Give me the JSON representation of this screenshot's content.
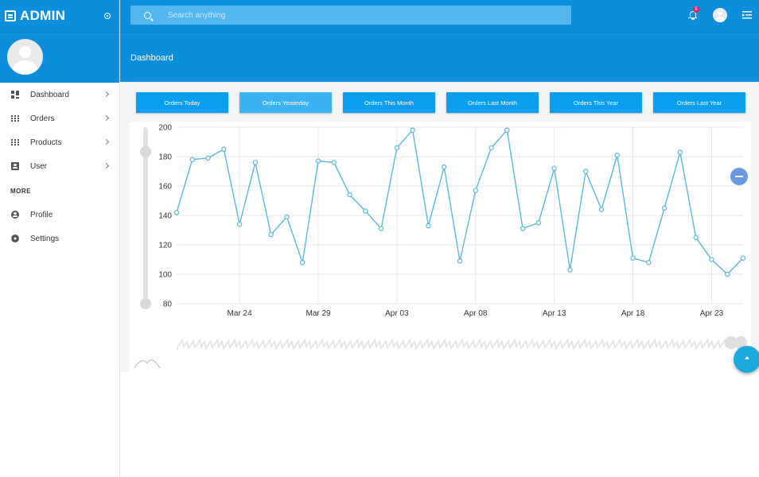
{
  "brand": {
    "title": "ADMIN"
  },
  "search": {
    "placeholder": "Search anything"
  },
  "notifications": {
    "count": "5"
  },
  "sidebar": {
    "items": [
      {
        "label": "Dashboard",
        "icon": "dashboard-icon"
      },
      {
        "label": "Orders",
        "icon": "grid-icon"
      },
      {
        "label": "Products",
        "icon": "grid-icon"
      },
      {
        "label": "User",
        "icon": "user-card-icon"
      }
    ],
    "section_title": "MORE",
    "more_items": [
      {
        "label": "Profile",
        "icon": "profile-icon"
      },
      {
        "label": "Settings",
        "icon": "gear-icon"
      }
    ]
  },
  "header": {
    "title": "Dashboard"
  },
  "order_buttons": [
    {
      "label": "Orders Today",
      "active": false
    },
    {
      "label": "Orders Yesterday",
      "active": true
    },
    {
      "label": "Orders This Month",
      "active": false
    },
    {
      "label": "Orders Last Month",
      "active": false
    },
    {
      "label": "Orders This Year",
      "active": false
    },
    {
      "label": "Orders Last Year",
      "active": false
    }
  ],
  "colors": {
    "primary": "#0b8fdc",
    "line": "#5bb8d8",
    "button": "#0b9eee"
  },
  "chart_data": {
    "type": "line",
    "ylim": [
      80,
      200
    ],
    "yticks": [
      80,
      100,
      120,
      140,
      160,
      180,
      200
    ],
    "x_ticks": [
      "Mar 24",
      "Mar 29",
      "Apr 03",
      "Apr 08",
      "Apr 13",
      "Apr 18",
      "Apr 23"
    ],
    "x_tick_index": [
      4,
      9,
      14,
      19,
      24,
      29,
      34
    ],
    "values": [
      142,
      178,
      179,
      185,
      134,
      176,
      127,
      139,
      108,
      177,
      176,
      154,
      143,
      131,
      186,
      198,
      133,
      173,
      109,
      157,
      186,
      198,
      131,
      135,
      172,
      103,
      170,
      144,
      181,
      111,
      108,
      145,
      183,
      125,
      110,
      100,
      111
    ],
    "grid": true,
    "legend": false
  }
}
